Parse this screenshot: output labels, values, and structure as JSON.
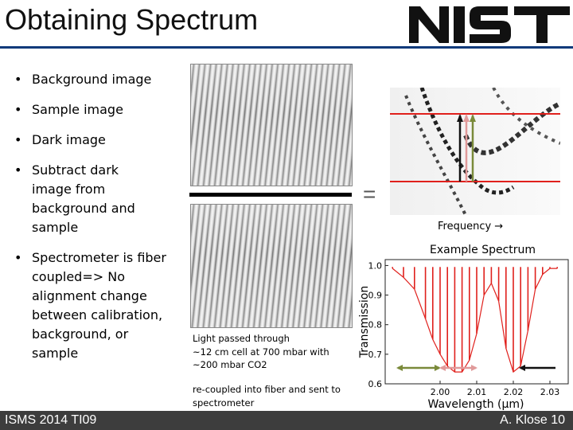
{
  "title": "Obtaining Spectrum",
  "logo_text": "NIST",
  "bullets": [
    "Background image",
    "Sample image",
    "Dark image",
    "Subtract dark image from background and sample",
    "Spectrometer is fiber coupled=> No alignment change between calibration, background, or sample"
  ],
  "equals_sign": "=",
  "frequency_label": "Frequency →",
  "caption": {
    "line1": "Light passed through",
    "line2": "~12 cm cell at 700 mbar with",
    "line3": "~200 mbar CO2",
    "line4": "re-coupled into fiber and sent to",
    "line5": "spectrometer"
  },
  "footer": {
    "left": "ISMS 2014   TI09",
    "right": "A. Klose   10"
  },
  "colors": {
    "title_rule": "#0e3a7a",
    "footer_bg": "#3d3d3d",
    "spectrum_line": "#e0201c",
    "marker_line": "#e0201c",
    "olive_arrow": "#7a8a3a",
    "pink_arrow": "#e09a9a"
  },
  "chart_data": {
    "type": "line",
    "title": "Example Spectrum",
    "xlabel": "Wavelength (μm)",
    "ylabel": "Transmission",
    "xlim": [
      1.985,
      2.035
    ],
    "ylim": [
      0.6,
      1.02
    ],
    "xticks": [
      "2.00",
      "2.01",
      "2.02",
      "2.03"
    ],
    "yticks": [
      "0.6",
      "0.7",
      "0.8",
      "0.9",
      "1.0"
    ],
    "series": [
      {
        "x": [
          1.987,
          1.99,
          1.993,
          1.996,
          1.998,
          2.0,
          2.002,
          2.004,
          2.006,
          2.008,
          2.01,
          2.012,
          2.014,
          2.016,
          2.018,
          2.02,
          2.022,
          2.024,
          2.026,
          2.028,
          2.03,
          2.032
        ],
        "y": [
          0.99,
          0.96,
          0.92,
          0.82,
          0.75,
          0.7,
          0.66,
          0.64,
          0.64,
          0.68,
          0.77,
          0.9,
          0.94,
          0.88,
          0.72,
          0.64,
          0.66,
          0.78,
          0.92,
          0.97,
          0.99,
          0.99
        ]
      }
    ]
  }
}
